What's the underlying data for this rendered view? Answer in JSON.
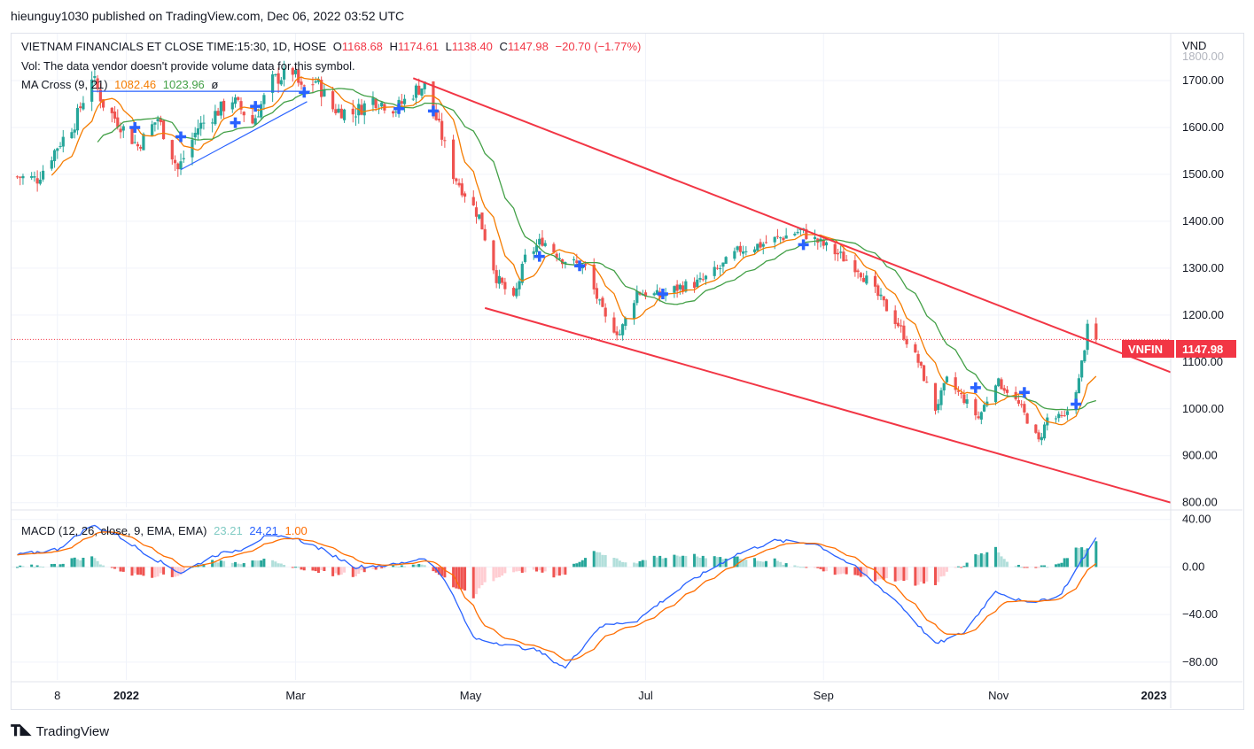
{
  "header": {
    "published": "hieunguy1030 published on TradingView.com, Dec 06, 2022 03:52 UTC"
  },
  "legend": {
    "symbol": "VIETNAM FINANCIALS ET CLOSE TIME:15:30, 1D, HOSE",
    "o_label": "O",
    "o_value": "1168.68",
    "h_label": "H",
    "h_value": "1174.61",
    "l_label": "L",
    "l_value": "1138.40",
    "c_label": "C",
    "c_value": "1147.98",
    "change": "−20.70 (−1.77%)",
    "vol_note": "Vol: The data vendor doesn't provide volume data for this symbol.",
    "ma_label": "MA Cross (9, 21)",
    "ma_fast": "1082.46",
    "ma_slow": "1023.96",
    "ma_extra": "ø",
    "macd_label": "MACD (12, 26, close, 9, EMA, EMA)",
    "macd_hist": "23.21",
    "macd_line": "24.21",
    "macd_signal": "1.00"
  },
  "price_axis": {
    "currency": "VND",
    "top_partial": "1800.00",
    "ticks": [
      "1700.00",
      "1600.00",
      "1500.00",
      "1400.00",
      "1300.00",
      "1200.00",
      "1100.00",
      "1000.00",
      "900.00",
      "800.00"
    ],
    "macd_ticks": [
      "40.00",
      "0.00",
      "−40.00",
      "−80.00"
    ]
  },
  "last_price_label": {
    "symbol": "VNFIN",
    "value": "1147.98"
  },
  "time_axis": [
    "8",
    "2022",
    "Mar",
    "May",
    "Jul",
    "Sep",
    "Nov",
    "2023"
  ],
  "footer": {
    "brand": "TradingView"
  },
  "colors": {
    "up": "#26a69a",
    "down": "#ef5350",
    "ma_fast": "#f57c00",
    "ma_slow": "#43a047",
    "macd": "#2962ff",
    "signal": "#ff6d00",
    "trend_red": "#f23645",
    "trend_blue": "#2962ff"
  },
  "chart_data": {
    "type": "candlestick",
    "symbol": "VIETNAM FINANCIALS ET",
    "interval": "1D",
    "y_range": [
      790,
      1800
    ],
    "macd_range": [
      -95,
      45
    ],
    "x_start": "2021-11-22",
    "x_end": "2022-12-31",
    "close_anchors": [
      [
        "2021-11-24",
        1495
      ],
      [
        "2021-12-01",
        1490
      ],
      [
        "2021-12-08",
        1560
      ],
      [
        "2021-12-14",
        1610
      ],
      [
        "2021-12-20",
        1710
      ],
      [
        "2021-12-24",
        1650
      ],
      [
        "2022-01-05",
        1560
      ],
      [
        "2022-01-12",
        1620
      ],
      [
        "2022-01-19",
        1510
      ],
      [
        "2022-01-26",
        1600
      ],
      [
        "2022-02-07",
        1660
      ],
      [
        "2022-02-14",
        1610
      ],
      [
        "2022-02-21",
        1700
      ],
      [
        "2022-02-28",
        1720
      ],
      [
        "2022-03-03",
        1680
      ],
      [
        "2022-03-08",
        1700
      ],
      [
        "2022-03-14",
        1640
      ],
      [
        "2022-03-21",
        1630
      ],
      [
        "2022-03-28",
        1660
      ],
      [
        "2022-04-05",
        1640
      ],
      [
        "2022-04-12",
        1680
      ],
      [
        "2022-04-15",
        1690
      ],
      [
        "2022-04-20",
        1600
      ],
      [
        "2022-04-25",
        1500
      ],
      [
        "2022-05-04",
        1410
      ],
      [
        "2022-05-10",
        1280
      ],
      [
        "2022-05-16",
        1230
      ],
      [
        "2022-05-20",
        1320
      ],
      [
        "2022-05-26",
        1360
      ],
      [
        "2022-06-02",
        1320
      ],
      [
        "2022-06-10",
        1300
      ],
      [
        "2022-06-17",
        1190
      ],
      [
        "2022-06-22",
        1160
      ],
      [
        "2022-06-28",
        1250
      ],
      [
        "2022-07-06",
        1240
      ],
      [
        "2022-07-13",
        1260
      ],
      [
        "2022-07-20",
        1270
      ],
      [
        "2022-07-27",
        1300
      ],
      [
        "2022-08-03",
        1340
      ],
      [
        "2022-08-10",
        1350
      ],
      [
        "2022-08-17",
        1365
      ],
      [
        "2022-08-24",
        1380
      ],
      [
        "2022-08-29",
        1360
      ],
      [
        "2022-09-06",
        1330
      ],
      [
        "2022-09-13",
        1300
      ],
      [
        "2022-09-20",
        1240
      ],
      [
        "2022-09-27",
        1180
      ],
      [
        "2022-10-04",
        1100
      ],
      [
        "2022-10-10",
        1000
      ],
      [
        "2022-10-14",
        1060
      ],
      [
        "2022-10-20",
        1020
      ],
      [
        "2022-10-25",
        980
      ],
      [
        "2022-10-31",
        1060
      ],
      [
        "2022-11-04",
        1040
      ],
      [
        "2022-11-09",
        1000
      ],
      [
        "2022-11-15",
        930
      ],
      [
        "2022-11-18",
        980
      ],
      [
        "2022-11-24",
        980
      ],
      [
        "2022-11-29",
        1060
      ],
      [
        "2022-12-02",
        1170
      ],
      [
        "2022-12-05",
        1147.98
      ]
    ],
    "ma_cross_markers": [
      [
        "2022-01-04",
        1600
      ],
      [
        "2022-01-20",
        1580
      ],
      [
        "2022-02-08",
        1610
      ],
      [
        "2022-02-15",
        1645
      ],
      [
        "2022-03-04",
        1675
      ],
      [
        "2022-04-06",
        1640
      ],
      [
        "2022-04-18",
        1635
      ],
      [
        "2022-05-25",
        1325
      ],
      [
        "2022-06-08",
        1305
      ],
      [
        "2022-07-07",
        1245
      ],
      [
        "2022-08-25",
        1350
      ],
      [
        "2022-10-24",
        1045
      ],
      [
        "2022-11-10",
        1035
      ],
      [
        "2022-11-28",
        1010
      ]
    ],
    "trendlines": [
      {
        "color": "#f23645",
        "from": [
          "2022-04-11",
          1705
        ],
        "to": [
          "2022-12-31",
          1078
        ]
      },
      {
        "color": "#f23645",
        "from": [
          "2022-05-06",
          1215
        ],
        "to": [
          "2022-12-31",
          800
        ]
      },
      {
        "color": "#2962ff",
        "from": [
          "2021-12-20",
          1677
        ],
        "to": [
          "2022-03-06",
          1677
        ]
      },
      {
        "color": "#2962ff",
        "from": [
          "2022-01-20",
          1510
        ],
        "to": [
          "2022-03-05",
          1655
        ]
      }
    ],
    "macd_anchors": [
      [
        "2021-11-24",
        10
      ],
      [
        "2021-12-08",
        15
      ],
      [
        "2021-12-20",
        35
      ],
      [
        "2021-12-28",
        28
      ],
      [
        "2022-01-10",
        8
      ],
      [
        "2022-01-20",
        -5
      ],
      [
        "2022-02-01",
        10
      ],
      [
        "2022-02-10",
        15
      ],
      [
        "2022-02-18",
        25
      ],
      [
        "2022-02-28",
        25
      ],
      [
        "2022-03-10",
        15
      ],
      [
        "2022-03-22",
        0
      ],
      [
        "2022-04-05",
        2
      ],
      [
        "2022-04-15",
        8
      ],
      [
        "2022-04-22",
        -10
      ],
      [
        "2022-05-02",
        -60
      ],
      [
        "2022-05-13",
        -65
      ],
      [
        "2022-05-24",
        -70
      ],
      [
        "2022-06-03",
        -85
      ],
      [
        "2022-06-15",
        -50
      ],
      [
        "2022-06-28",
        -45
      ],
      [
        "2022-07-06",
        -30
      ],
      [
        "2022-07-18",
        -10
      ],
      [
        "2022-08-01",
        10
      ],
      [
        "2022-08-15",
        22
      ],
      [
        "2022-08-29",
        20
      ],
      [
        "2022-09-12",
        0
      ],
      [
        "2022-09-27",
        -30
      ],
      [
        "2022-10-10",
        -65
      ],
      [
        "2022-10-20",
        -55
      ],
      [
        "2022-10-31",
        -20
      ],
      [
        "2022-11-10",
        -30
      ],
      [
        "2022-11-22",
        -25
      ],
      [
        "2022-12-05",
        24.21
      ]
    ],
    "xlabel": "",
    "ylabel": ""
  }
}
